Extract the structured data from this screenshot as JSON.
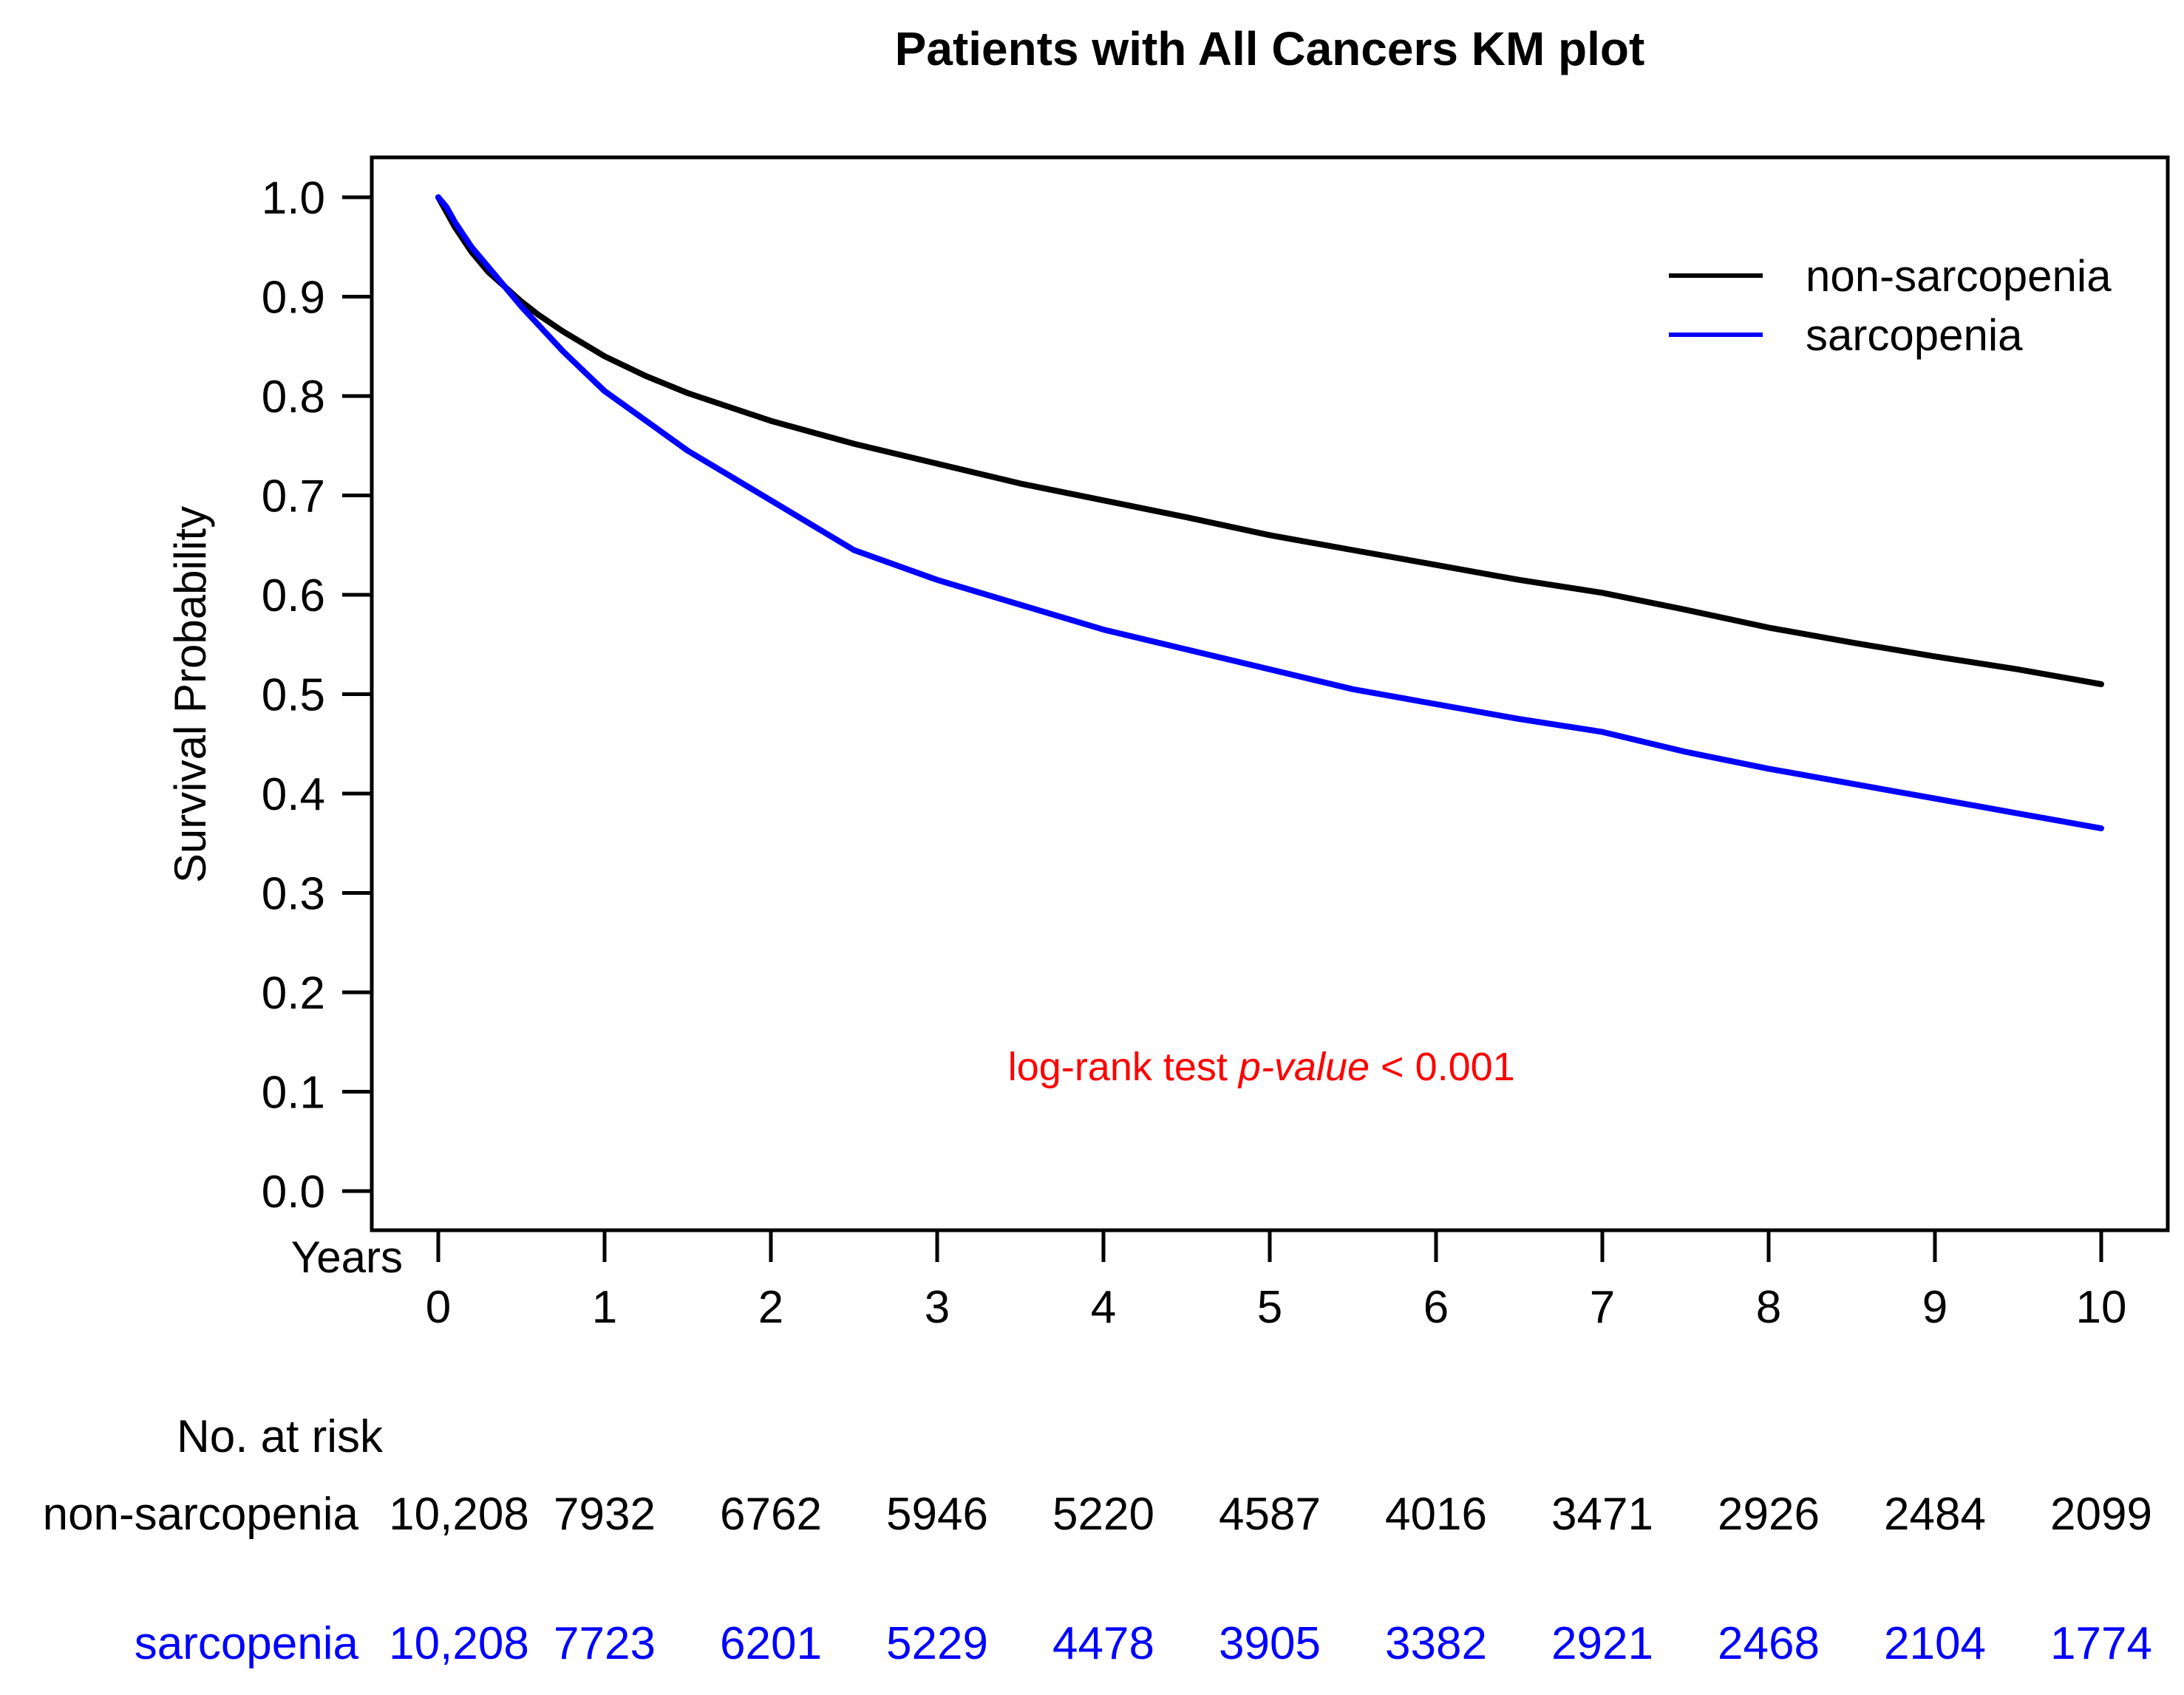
{
  "chart_data": {
    "type": "line",
    "title": "Patients with All Cancers KM plot",
    "xlabel": "Years",
    "ylabel": "Survival Probability",
    "xlim": [
      0,
      10
    ],
    "ylim": [
      0,
      1
    ],
    "x_ticks": [
      "0",
      "1",
      "2",
      "3",
      "4",
      "5",
      "6",
      "7",
      "8",
      "9",
      "10"
    ],
    "y_ticks": [
      "0.0",
      "0.1",
      "0.2",
      "0.3",
      "0.4",
      "0.5",
      "0.6",
      "0.7",
      "0.8",
      "0.9",
      "1.0"
    ],
    "legend_position": "top-right",
    "series": [
      {
        "name": "non-sarcopenia",
        "color": "#000000",
        "x": [
          0,
          0.05,
          0.1,
          0.2,
          0.3,
          0.4,
          0.5,
          0.6,
          0.75,
          1.0,
          1.25,
          1.5,
          2.0,
          2.5,
          3.0,
          3.5,
          4.0,
          4.5,
          5.0,
          5.5,
          6.0,
          6.5,
          7.0,
          7.5,
          8.0,
          8.5,
          9.0,
          9.5,
          10.0
        ],
        "y": [
          1.0,
          0.985,
          0.97,
          0.945,
          0.925,
          0.91,
          0.895,
          0.882,
          0.865,
          0.84,
          0.82,
          0.803,
          0.775,
          0.752,
          0.732,
          0.712,
          0.695,
          0.678,
          0.66,
          0.645,
          0.63,
          0.615,
          0.602,
          0.585,
          0.567,
          0.552,
          0.538,
          0.525,
          0.51
        ]
      },
      {
        "name": "sarcopenia",
        "color": "#0000ff",
        "x": [
          0,
          0.05,
          0.1,
          0.2,
          0.3,
          0.4,
          0.5,
          0.6,
          0.75,
          1.0,
          1.25,
          1.5,
          1.75,
          2.0,
          2.5,
          3.0,
          3.5,
          4.0,
          4.5,
          5.0,
          5.5,
          6.0,
          6.5,
          7.0,
          7.5,
          8.0,
          8.5,
          9.0,
          9.5,
          10.0
        ],
        "y": [
          1.0,
          0.99,
          0.975,
          0.95,
          0.93,
          0.91,
          0.89,
          0.872,
          0.845,
          0.805,
          0.775,
          0.745,
          0.72,
          0.695,
          0.645,
          0.615,
          0.59,
          0.565,
          0.545,
          0.525,
          0.505,
          0.49,
          0.475,
          0.462,
          0.442,
          0.425,
          0.41,
          0.395,
          0.38,
          0.365
        ]
      }
    ],
    "annotation": {
      "prefix": "log-rank test ",
      "italic": "p-value",
      "suffix": " < 0.001",
      "color": "#ff0000",
      "x": 4.95,
      "y": 0.125
    },
    "risk_table": {
      "heading": "No. at risk",
      "rows": [
        {
          "label": "non-sarcopenia",
          "color": "#000000",
          "values": [
            "10,208",
            "7932",
            "6762",
            "5946",
            "5220",
            "4587",
            "4016",
            "3471",
            "2926",
            "2484",
            "2099"
          ]
        },
        {
          "label": "sarcopenia",
          "color": "#0000ff",
          "values": [
            "10,208",
            "7723",
            "6201",
            "5229",
            "4478",
            "3905",
            "3382",
            "2921",
            "2468",
            "2104",
            "1774"
          ]
        }
      ]
    }
  }
}
